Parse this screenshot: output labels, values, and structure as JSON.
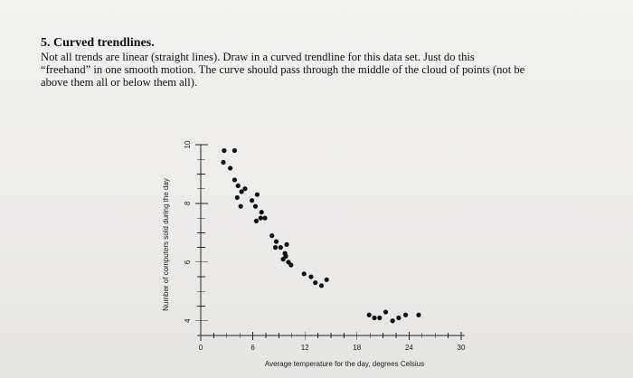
{
  "worksheet": {
    "title": "5. Curved trendlines.",
    "instructions_lines": [
      "Not all trends are linear (straight lines). Draw in a curved trendline for this data set. Just do this",
      "“freehand” in one smooth motion. The curve should pass through the middle of the cloud of points (not be",
      "above them all or below them all)."
    ]
  },
  "chart_data": {
    "type": "scatter",
    "title": "",
    "xlabel": "Average temperature for the day, degrees Celsius",
    "ylabel": "Number of computers sold during the day",
    "xlim": [
      0,
      30
    ],
    "ylim": [
      3.5,
      10
    ],
    "xticks": [
      0,
      6,
      12,
      18,
      24,
      30
    ],
    "xtick_labels": [
      "0",
      "6",
      "12",
      "18",
      "24",
      "30"
    ],
    "yticks": [
      4,
      6,
      8,
      10
    ],
    "ytick_labels": [
      "4",
      "6",
      "8",
      "10"
    ],
    "x_minor_ticks": [
      1.5,
      3,
      4.5,
      7.5,
      9,
      10.5,
      13.5,
      15,
      16.5,
      19.5,
      21,
      22.5,
      25.5,
      27,
      28.5
    ],
    "y_minor_ticks": [
      4.5,
      5,
      5.5,
      6.5,
      7,
      7.5,
      8.5,
      9,
      9.5
    ],
    "grid": false,
    "x": [
      2.7,
      3.9,
      2.6,
      3.4,
      3.9,
      4.3,
      4.7,
      5.1,
      4.2,
      4.6,
      5.9,
      6.5,
      6.3,
      7.0,
      7.4,
      6.9,
      6.4,
      8.2,
      8.7,
      8.6,
      9.2,
      9.7,
      9.9,
      9.5,
      10.1,
      10.4,
      9.8,
      11.9,
      12.7,
      13.2,
      14.5,
      13.9,
      19.4,
      20.0,
      20.6,
      21.3,
      22.1,
      22.8,
      23.6,
      25.1
    ],
    "y": [
      9.8,
      9.8,
      9.4,
      9.2,
      8.8,
      8.6,
      8.4,
      8.5,
      8.2,
      7.9,
      8.1,
      8.3,
      7.9,
      7.7,
      7.5,
      7.5,
      7.4,
      6.9,
      6.7,
      6.5,
      6.5,
      6.3,
      6.6,
      6.1,
      6.0,
      5.9,
      6.2,
      5.6,
      5.5,
      5.3,
      5.4,
      5.2,
      4.2,
      4.1,
      4.1,
      4.3,
      4.0,
      4.1,
      4.2,
      4.2
    ],
    "marker_color": "#111111"
  }
}
